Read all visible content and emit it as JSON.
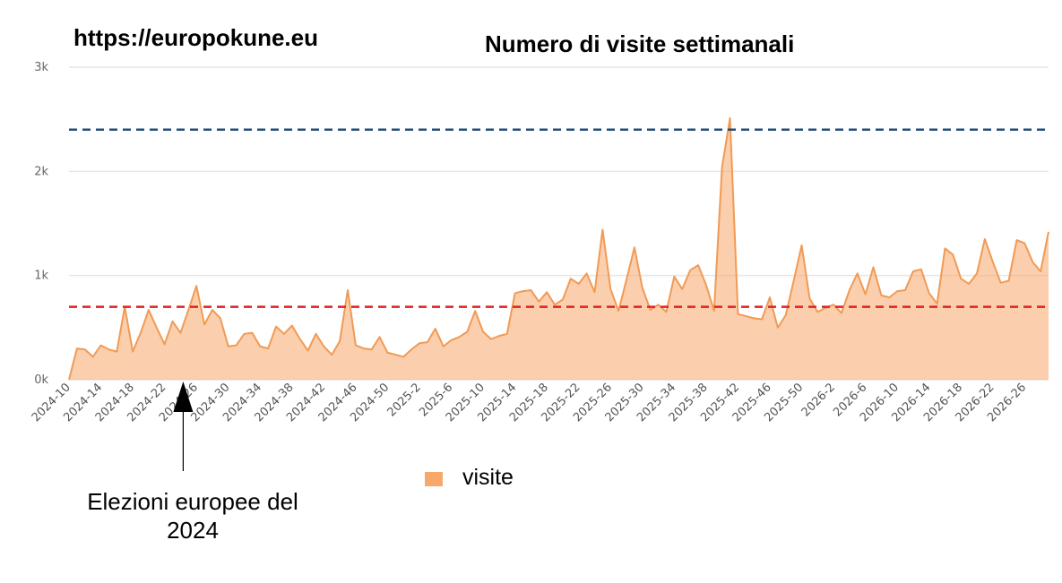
{
  "site_url": "https://europokune.eu",
  "annotation": {
    "text_line1": "Elezioni europee del",
    "text_line2": "2024"
  },
  "colors": {
    "area_fill": "#f7a86a",
    "area_fill_opacity": 0.55,
    "area_line": "#f19a55",
    "upper_line": "#1f4e79",
    "lower_line": "#e02020",
    "grid": "#e6e6e6"
  },
  "chart_data": {
    "type": "area",
    "title": "Numero di visite settimanali",
    "xlabel": "",
    "ylabel": "",
    "ylim": [
      0,
      3000
    ],
    "y_ticks": [
      {
        "value": 0,
        "label": "0k"
      },
      {
        "value": 1000,
        "label": "1k"
      },
      {
        "value": 2000,
        "label": "2k"
      },
      {
        "value": 3000,
        "label": "3k"
      }
    ],
    "x_tick_labels": [
      "2024-10",
      "2024-14",
      "2024-18",
      "2024-22",
      "2024-26",
      "2024-30",
      "2024-34",
      "2024-38",
      "2024-42",
      "2024-46",
      "2024-50",
      "2025-2",
      "2025-6",
      "2025-10",
      "2025-14",
      "2025-18",
      "2025-22",
      "2025-26",
      "2025-30",
      "2025-34",
      "2025-38",
      "2025-42",
      "2025-46",
      "2025-50",
      "2026-2",
      "2026-6",
      "2026-10",
      "2026-14",
      "2026-18",
      "2026-22",
      "2026-26"
    ],
    "x_start_week": "2024-10",
    "grid": true,
    "legend_position": "bottom",
    "series": [
      {
        "name": "visite",
        "values": [
          0,
          300,
          290,
          220,
          330,
          290,
          270,
          700,
          270,
          450,
          670,
          500,
          340,
          560,
          450,
          670,
          900,
          530,
          670,
          590,
          320,
          330,
          440,
          450,
          320,
          300,
          510,
          440,
          520,
          390,
          280,
          440,
          320,
          240,
          370,
          860,
          330,
          300,
          290,
          410,
          260,
          240,
          220,
          290,
          350,
          360,
          490,
          320,
          380,
          410,
          460,
          660,
          460,
          390,
          420,
          440,
          830,
          850,
          860,
          750,
          840,
          720,
          770,
          970,
          920,
          1020,
          840,
          1440,
          870,
          660,
          960,
          1270,
          880,
          670,
          720,
          650,
          990,
          870,
          1050,
          1100,
          910,
          660,
          2040,
          2510,
          630,
          610,
          590,
          580,
          790,
          500,
          620,
          950,
          1290,
          780,
          650,
          690,
          720,
          640,
          860,
          1020,
          820,
          1080,
          810,
          790,
          850,
          860,
          1040,
          1060,
          830,
          730,
          1260,
          1200,
          970,
          920,
          1020,
          1350,
          1130,
          930,
          950,
          1340,
          1310,
          1130,
          1040,
          1420
        ]
      }
    ],
    "reference_lines": [
      {
        "value": 2400,
        "style": "dashed",
        "color": "#1f4e79"
      },
      {
        "value": 700,
        "style": "dashed",
        "color": "#e02020"
      }
    ]
  }
}
